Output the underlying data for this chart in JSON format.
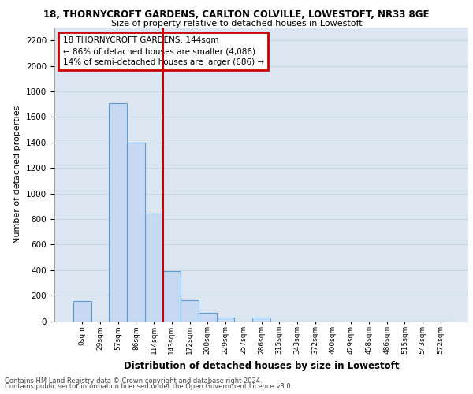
{
  "title1": "18, THORNYCROFT GARDENS, CARLTON COLVILLE, LOWESTOFT, NR33 8GE",
  "title2": "Size of property relative to detached houses in Lowestoft",
  "xlabel": "Distribution of detached houses by size in Lowestoft",
  "ylabel": "Number of detached properties",
  "footer1": "Contains HM Land Registry data © Crown copyright and database right 2024.",
  "footer2": "Contains public sector information licensed under the Open Government Licence v3.0.",
  "annotation_line1": "18 THORNYCROFT GARDENS: 144sqm",
  "annotation_line2": "← 86% of detached houses are smaller (4,086)",
  "annotation_line3": "14% of semi-detached houses are larger (686) →",
  "bar_categories": [
    "0sqm",
    "29sqm",
    "57sqm",
    "86sqm",
    "114sqm",
    "143sqm",
    "172sqm",
    "200sqm",
    "229sqm",
    "257sqm",
    "286sqm",
    "315sqm",
    "343sqm",
    "372sqm",
    "400sqm",
    "429sqm",
    "458sqm",
    "486sqm",
    "515sqm",
    "543sqm",
    "572sqm"
  ],
  "bar_values": [
    155,
    0,
    1710,
    1400,
    840,
    390,
    165,
    65,
    30,
    0,
    25,
    0,
    0,
    0,
    0,
    0,
    0,
    0,
    0,
    0,
    0
  ],
  "bar_color": "#c6d9f0",
  "bar_edge_color": "#5b9bd5",
  "ylim": [
    0,
    2300
  ],
  "yticks": [
    0,
    200,
    400,
    600,
    800,
    1000,
    1200,
    1400,
    1600,
    1800,
    2000,
    2200
  ],
  "grid_color": "#c8d4e0",
  "annotation_box_color": "#cc0000",
  "vline_color": "#cc0000",
  "vline_x": 5,
  "background_color": "#dce6f1",
  "fig_bg": "#ffffff"
}
